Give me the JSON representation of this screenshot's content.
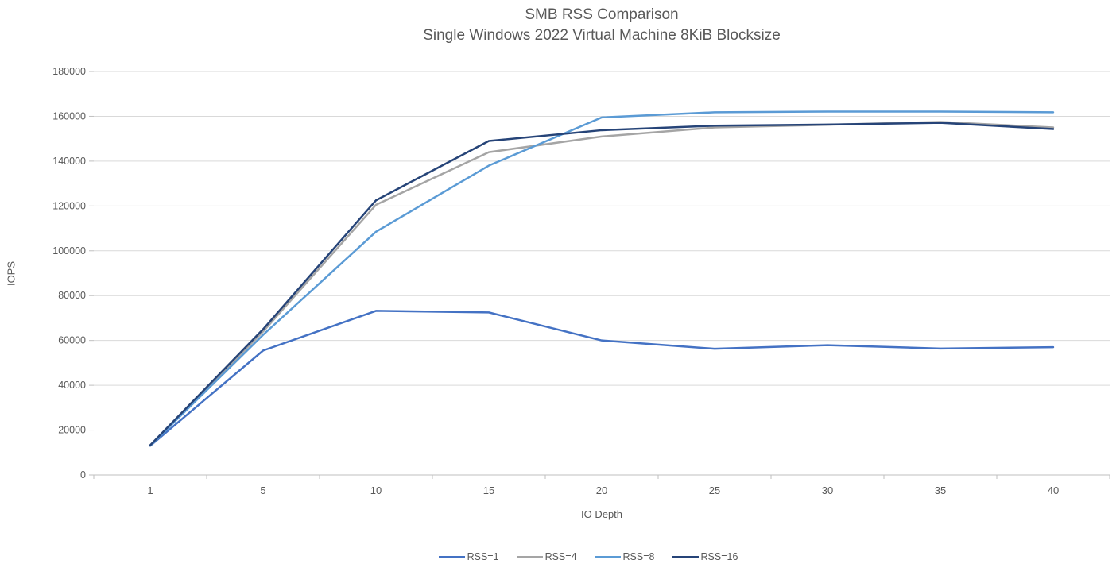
{
  "title": {
    "line1": "SMB RSS Comparison",
    "line2": "Single Windows 2022 Virtual Machine 8KiB Blocksize"
  },
  "chart_data": {
    "type": "line",
    "title": "SMB RSS Comparison",
    "subtitle": "Single Windows 2022 Virtual Machine 8KiB Blocksize",
    "xlabel": "IO Depth",
    "ylabel": "IOPS",
    "categories": [
      1,
      5,
      10,
      15,
      20,
      25,
      30,
      35,
      40
    ],
    "ylim": [
      0,
      180000
    ],
    "ytick_step": 20000,
    "grid": true,
    "legend_position": "bottom",
    "series": [
      {
        "name": "RSS=1",
        "color": "#4472C4",
        "values": [
          13000,
          55500,
          73200,
          72500,
          60000,
          56300,
          57900,
          56400,
          57000
        ]
      },
      {
        "name": "RSS=4",
        "color": "#A5A5A5",
        "values": [
          13100,
          64000,
          120500,
          144000,
          151000,
          155000,
          156200,
          157500,
          155000
        ]
      },
      {
        "name": "RSS=8",
        "color": "#5B9BD5",
        "values": [
          13100,
          62500,
          108500,
          138000,
          159500,
          161800,
          162100,
          162100,
          161800
        ]
      },
      {
        "name": "RSS=16",
        "color": "#264478",
        "values": [
          13300,
          65000,
          122500,
          149000,
          153800,
          155800,
          156300,
          157100,
          154300
        ]
      }
    ]
  },
  "style": {
    "text_color": "#595959",
    "gridline_color": "#D9D9D9",
    "axis_color": "#BFBFBF",
    "background": "#FFFFFF"
  }
}
